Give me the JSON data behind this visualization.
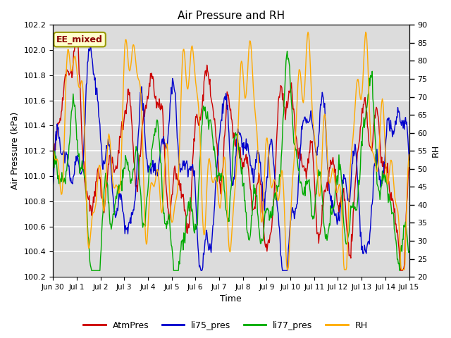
{
  "title": "Air Pressure and RH",
  "xlabel": "Time",
  "ylabel_left": "Air Pressure (kPa)",
  "ylabel_right": "RH",
  "annotation": "EE_mixed",
  "ylim_left": [
    100.2,
    102.2
  ],
  "ylim_right": [
    20,
    90
  ],
  "yticks_left": [
    100.2,
    100.4,
    100.6,
    100.8,
    101.0,
    101.2,
    101.4,
    101.6,
    101.8,
    102.0,
    102.2
  ],
  "yticks_right": [
    20,
    25,
    30,
    35,
    40,
    45,
    50,
    55,
    60,
    65,
    70,
    75,
    80,
    85,
    90
  ],
  "bg_color": "#dcdcdc",
  "line_colors": {
    "AtmPres": "#cc0000",
    "li75_pres": "#0000cc",
    "li77_pres": "#00aa00",
    "RH": "#ffaa00"
  },
  "legend_labels": [
    "AtmPres",
    "li75_pres",
    "li77_pres",
    "RH"
  ],
  "x_tick_labels": [
    "Jun 30",
    "Jul 1",
    "Jul 2",
    "Jul 3",
    "Jul 4",
    "Jul 5",
    "Jul 6",
    "Jul 7",
    "Jul 8",
    "Jul 9",
    "Jul 10",
    "Jul 11",
    "Jul 12",
    "Jul 13",
    "Jul 14",
    "Jul 15"
  ],
  "n_points": 600
}
